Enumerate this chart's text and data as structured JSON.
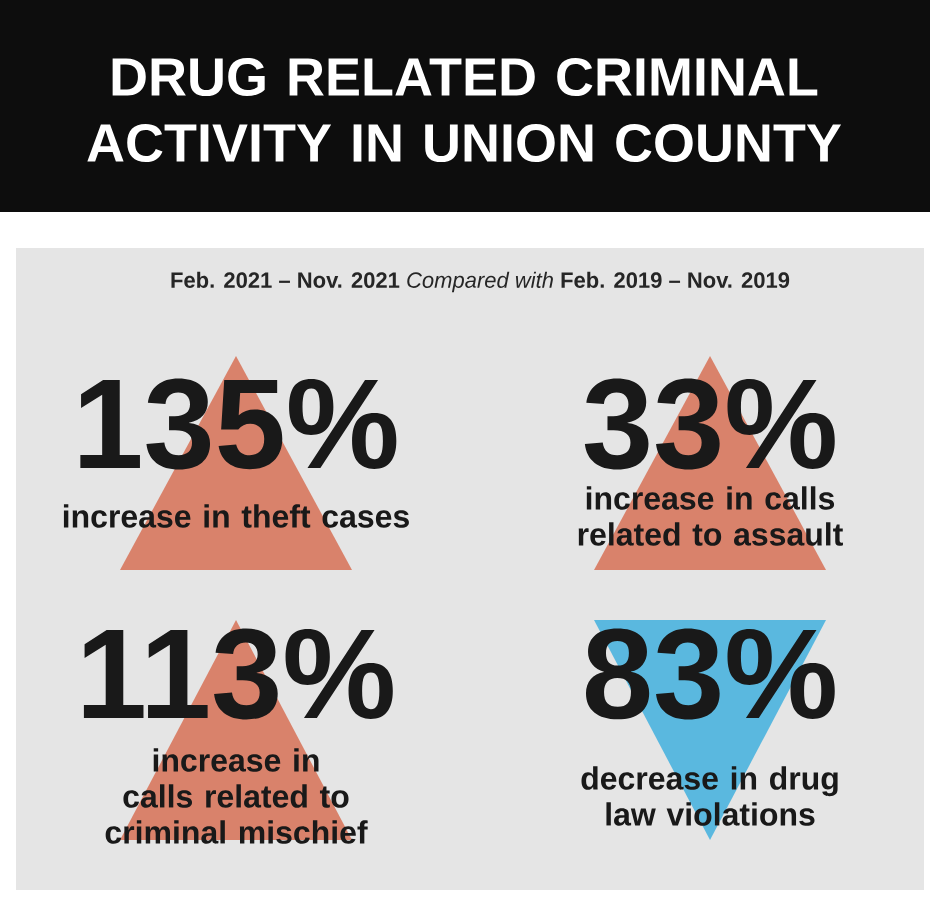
{
  "chart_data": {
    "type": "other",
    "title": "DRUG RELATED CRIMINAL ACTIVITY IN UNION COUNTY",
    "subtitle": "**Feb. 2021 – Nov. 2021** *Compared with* **Feb. 2019 – Nov. 2019**",
    "categories": [
      "increase in theft cases",
      "increase in calls related to assault",
      "increase in calls related to criminal mischief",
      "decrease in drug law violations"
    ],
    "values": [
      135,
      33,
      113,
      83
    ],
    "data_labels": true,
    "ylabel": "%",
    "colors": [
      "#d9826b",
      "#d9826b",
      "#d9826b",
      "#5ab8df"
    ]
  }
}
